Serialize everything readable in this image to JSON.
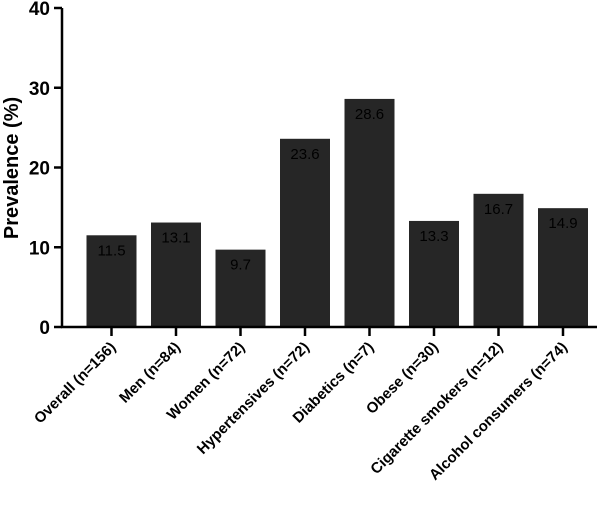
{
  "chart_data": {
    "type": "bar",
    "categories": [
      "Overall (n=156)",
      "Men (n=84)",
      "Women (n=72)",
      "Hypertensives (n=72)",
      "Diabetics (n=7)",
      "Obese (n=30)",
      "Cigarette smokers (n=12)",
      "Alcohol consumers (n=74)"
    ],
    "values": [
      11.5,
      13.1,
      9.7,
      23.6,
      28.6,
      13.3,
      16.7,
      14.9
    ],
    "data_labels": [
      "11.5",
      "13.1",
      "9.7",
      "23.6",
      "28.6",
      "13.3",
      "16.7",
      "14.9"
    ],
    "ylabel": "Prevalence (%)",
    "ylim": [
      0,
      40
    ],
    "yticks": [
      0,
      10,
      20,
      30,
      40
    ],
    "ytick_labels": [
      "0",
      "10",
      "20",
      "30",
      "40"
    ],
    "grid": false,
    "bar_color": "#262626"
  }
}
